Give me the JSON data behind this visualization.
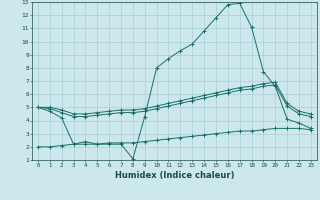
{
  "xlabel": "Humidex (Indice chaleur)",
  "bg_color": "#cce8ec",
  "grid_color": "#aacdd4",
  "line_color": "#1a6e6a",
  "xlim": [
    -0.5,
    23.5
  ],
  "ylim": [
    1,
    13
  ],
  "xticks": [
    0,
    1,
    2,
    3,
    4,
    5,
    6,
    7,
    8,
    9,
    10,
    11,
    12,
    13,
    14,
    15,
    16,
    17,
    18,
    19,
    20,
    21,
    22,
    23
  ],
  "yticks": [
    1,
    2,
    3,
    4,
    5,
    6,
    7,
    8,
    9,
    10,
    11,
    12,
    13
  ],
  "series": [
    {
      "x": [
        0,
        1,
        2,
        3,
        4,
        5,
        6,
        7,
        8,
        9,
        10,
        11,
        12,
        13,
        14,
        15,
        16,
        17,
        18,
        19,
        20,
        21,
        22,
        23
      ],
      "y": [
        5.0,
        4.7,
        4.2,
        2.2,
        2.4,
        2.2,
        2.2,
        2.2,
        1.1,
        4.3,
        8.0,
        8.7,
        9.3,
        9.8,
        10.8,
        11.8,
        12.8,
        12.9,
        11.1,
        7.7,
        6.6,
        4.1,
        3.8,
        3.4
      ]
    },
    {
      "x": [
        0,
        1,
        2,
        3,
        4,
        5,
        6,
        7,
        8,
        9,
        10,
        11,
        12,
        13,
        14,
        15,
        16,
        17,
        18,
        19,
        20,
        21,
        22,
        23
      ],
      "y": [
        5.0,
        4.9,
        4.6,
        4.3,
        4.3,
        4.4,
        4.5,
        4.6,
        4.6,
        4.7,
        4.9,
        5.1,
        5.3,
        5.5,
        5.7,
        5.9,
        6.1,
        6.3,
        6.4,
        6.6,
        6.7,
        5.1,
        4.5,
        4.3
      ]
    },
    {
      "x": [
        0,
        1,
        2,
        3,
        4,
        5,
        6,
        7,
        8,
        9,
        10,
        11,
        12,
        13,
        14,
        15,
        16,
        17,
        18,
        19,
        20,
        21,
        22,
        23
      ],
      "y": [
        5.0,
        5.0,
        4.8,
        4.5,
        4.5,
        4.6,
        4.7,
        4.8,
        4.8,
        4.9,
        5.1,
        5.3,
        5.5,
        5.7,
        5.9,
        6.1,
        6.3,
        6.5,
        6.6,
        6.8,
        6.9,
        5.3,
        4.7,
        4.5
      ]
    },
    {
      "x": [
        0,
        1,
        2,
        3,
        4,
        5,
        6,
        7,
        8,
        9,
        10,
        11,
        12,
        13,
        14,
        15,
        16,
        17,
        18,
        19,
        20,
        21,
        22,
        23
      ],
      "y": [
        2.0,
        2.0,
        2.1,
        2.2,
        2.2,
        2.2,
        2.3,
        2.3,
        2.3,
        2.4,
        2.5,
        2.6,
        2.7,
        2.8,
        2.9,
        3.0,
        3.1,
        3.2,
        3.2,
        3.3,
        3.4,
        3.4,
        3.4,
        3.3
      ]
    }
  ]
}
